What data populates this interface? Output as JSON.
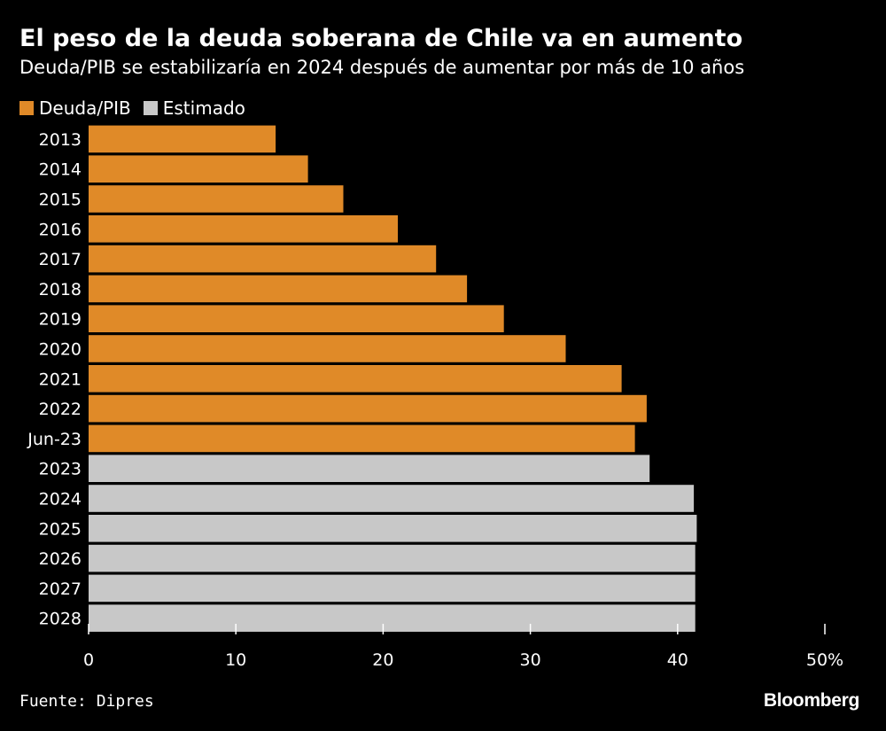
{
  "title": "El peso de la deuda soberana de Chile va en aumento",
  "subtitle": "Deuda/PIB se estabilizaría en 2024 después de aumentar por más de 10 años",
  "legend": [
    {
      "label": "Deuda/PIB",
      "color": "#e08a28"
    },
    {
      "label": "Estimado",
      "color": "#c8c8c8"
    }
  ],
  "source": "Fuente: Dipres",
  "brand": "Bloomberg",
  "chart_data": {
    "type": "bar",
    "orientation": "horizontal",
    "categories": [
      "2013",
      "2014",
      "2015",
      "2016",
      "2017",
      "2018",
      "2019",
      "2020",
      "2021",
      "2022",
      "Jun-23",
      "2023",
      "2024",
      "2025",
      "2026",
      "2027",
      "2028"
    ],
    "values": [
      12.7,
      14.9,
      17.3,
      21.0,
      23.6,
      25.7,
      28.2,
      32.4,
      36.2,
      37.9,
      37.1,
      38.1,
      41.1,
      41.3,
      41.2,
      41.2,
      41.2
    ],
    "series": [
      {
        "name": "Deuda/PIB",
        "categories": [
          "2013",
          "2014",
          "2015",
          "2016",
          "2017",
          "2018",
          "2019",
          "2020",
          "2021",
          "2022",
          "Jun-23"
        ],
        "color": "#e08a28"
      },
      {
        "name": "Estimado",
        "categories": [
          "2023",
          "2024",
          "2025",
          "2026",
          "2027",
          "2028"
        ],
        "color": "#c8c8c8"
      }
    ],
    "xlim": [
      0,
      50
    ],
    "xticks": [
      0,
      10,
      20,
      30,
      40,
      50
    ],
    "xtick_labels": [
      "0",
      "10",
      "20",
      "30",
      "40",
      "50%"
    ],
    "xlabel": "",
    "ylabel": "",
    "grid": false,
    "legend_position": "top-left"
  }
}
